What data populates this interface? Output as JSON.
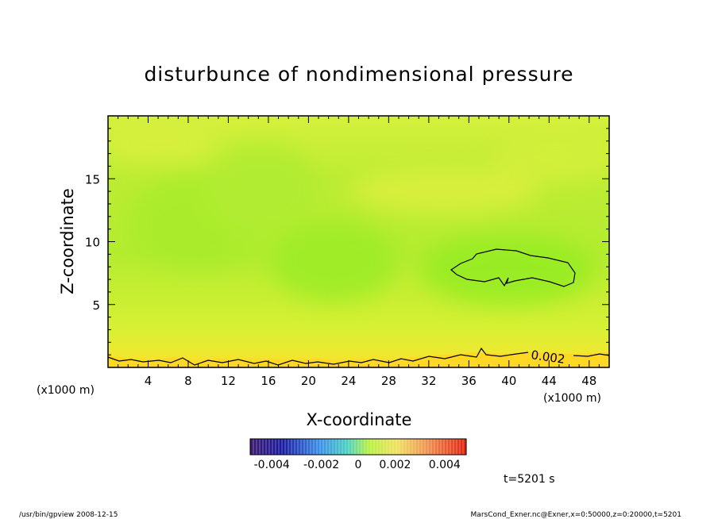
{
  "chart_data": {
    "type": "heatmap",
    "title": "disturbunce of nondimensional pressure",
    "xlabel": "X-coordinate",
    "ylabel": "Z-coordinate",
    "x_unit_left": "(x1000 m)",
    "x_unit_right": "(x1000 m)",
    "xlim": [
      0,
      50
    ],
    "ylim": [
      0,
      20
    ],
    "x_ticks": [
      "4",
      "8",
      "12",
      "16",
      "20",
      "24",
      "28",
      "32",
      "36",
      "40",
      "44",
      "48"
    ],
    "x_tick_values": [
      4,
      8,
      12,
      16,
      20,
      24,
      28,
      32,
      36,
      40,
      44,
      48
    ],
    "y_ticks": [
      "5",
      "10",
      "15"
    ],
    "y_tick_values": [
      5,
      10,
      15
    ],
    "colorbar": {
      "range": [
        -0.005,
        0.005
      ],
      "tick_labels": [
        "-0.004",
        "-0.002",
        "0",
        "0.002",
        "0.004"
      ],
      "tick_values": [
        -0.004,
        -0.002,
        0,
        0.002,
        0.004
      ]
    },
    "contour_label": "0.002",
    "contour_level": 0.002,
    "time_label": "t=5201 s",
    "grid": false
  },
  "footer": {
    "left": "/usr/bin/gpview  2008-12-15",
    "right": "MarsCond_Exner.nc@Exner,x=0:50000,z=0:20000,t=5201"
  },
  "colors": {
    "field_base": "#c8f032",
    "field_low": "#98f020",
    "field_high": "#ffd820",
    "contour": "#000000"
  }
}
